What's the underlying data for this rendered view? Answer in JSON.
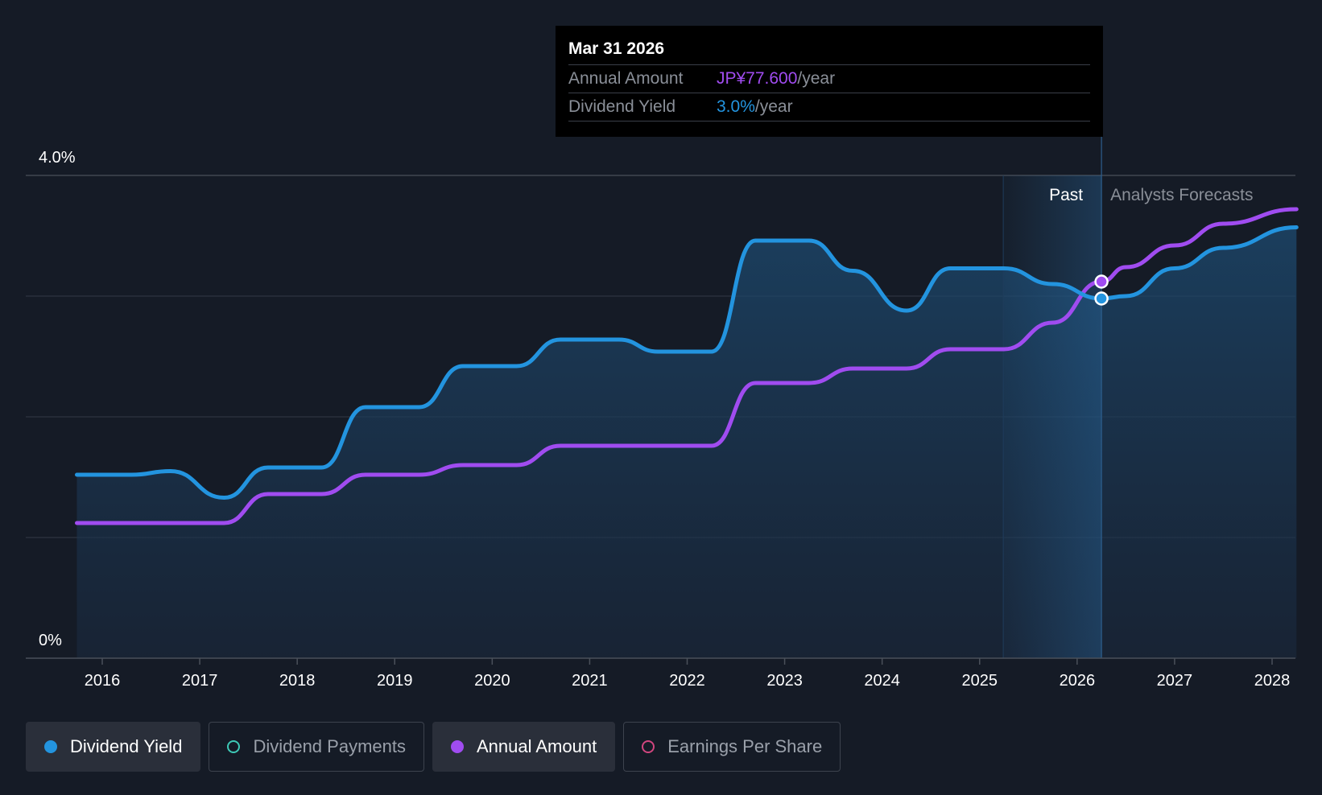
{
  "chart_data": {
    "type": "line",
    "title": "",
    "xlabel": "",
    "ylabel": "",
    "x_ticks": [
      "2016",
      "2017",
      "2018",
      "2019",
      "2020",
      "2021",
      "2022",
      "2023",
      "2024",
      "2025",
      "2026",
      "2027",
      "2028"
    ],
    "x_range": [
      2015.74,
      2028.25
    ],
    "y_range": [
      0,
      4.0
    ],
    "y_tick_labels": [
      "0%",
      "4.0%"
    ],
    "grid": true,
    "region_labels": {
      "past": "Past",
      "forecast": "Analysts Forecasts"
    },
    "past_end": 2026.25,
    "series": [
      {
        "name": "Dividend Yield",
        "color": "#2394df",
        "unit": "%",
        "points": [
          [
            2015.74,
            1.52
          ],
          [
            2016.05,
            1.52
          ],
          [
            2016.3,
            1.52
          ],
          [
            2016.7,
            1.55
          ],
          [
            2017.25,
            1.33
          ],
          [
            2017.7,
            1.58
          ],
          [
            2018.25,
            1.58
          ],
          [
            2018.7,
            2.08
          ],
          [
            2019.25,
            2.08
          ],
          [
            2019.7,
            2.42
          ],
          [
            2020.25,
            2.42
          ],
          [
            2020.7,
            2.64
          ],
          [
            2021.3,
            2.64
          ],
          [
            2021.7,
            2.54
          ],
          [
            2022.25,
            2.54
          ],
          [
            2022.7,
            3.46
          ],
          [
            2023.25,
            3.46
          ],
          [
            2023.7,
            3.21
          ],
          [
            2024.25,
            2.88
          ],
          [
            2024.7,
            3.23
          ],
          [
            2025.25,
            3.23
          ],
          [
            2025.75,
            3.1
          ],
          [
            2026.25,
            2.98
          ],
          [
            2026.5,
            3.0
          ],
          [
            2027.0,
            3.23
          ],
          [
            2027.5,
            3.4
          ],
          [
            2028.25,
            3.57
          ]
        ]
      },
      {
        "name": "Annual Amount",
        "color": "#a04cf0",
        "unit": "JP¥",
        "points": [
          [
            2015.74,
            1.12
          ],
          [
            2016.5,
            1.12
          ],
          [
            2017.25,
            1.12
          ],
          [
            2017.7,
            1.36
          ],
          [
            2018.25,
            1.36
          ],
          [
            2018.7,
            1.52
          ],
          [
            2019.25,
            1.52
          ],
          [
            2019.7,
            1.6
          ],
          [
            2020.25,
            1.6
          ],
          [
            2020.7,
            1.76
          ],
          [
            2021.5,
            1.76
          ],
          [
            2022.25,
            1.76
          ],
          [
            2022.7,
            2.28
          ],
          [
            2023.25,
            2.28
          ],
          [
            2023.7,
            2.4
          ],
          [
            2024.25,
            2.4
          ],
          [
            2024.7,
            2.56
          ],
          [
            2025.25,
            2.56
          ],
          [
            2025.75,
            2.78
          ],
          [
            2026.25,
            3.12
          ],
          [
            2026.5,
            3.24
          ],
          [
            2027.0,
            3.42
          ],
          [
            2027.5,
            3.6
          ],
          [
            2028.25,
            3.72
          ]
        ]
      }
    ],
    "highlight": {
      "x": 2026.25,
      "values": {
        "Dividend Yield": 2.98,
        "Annual Amount": 3.12
      }
    }
  },
  "tooltip": {
    "date": "Mar 31 2026",
    "rows": [
      {
        "label": "Annual Amount",
        "value": "JP¥77.600",
        "unit": "/year",
        "color": "#a04cf0"
      },
      {
        "label": "Dividend Yield",
        "value": "3.0%",
        "unit": "/year",
        "color": "#2394df"
      }
    ]
  },
  "legend": [
    {
      "label": "Dividend Yield",
      "color": "#2394df",
      "active": true,
      "filled": true
    },
    {
      "label": "Dividend Payments",
      "color": "#3ec9b6",
      "active": false,
      "filled": false
    },
    {
      "label": "Annual Amount",
      "color": "#a04cf0",
      "active": true,
      "filled": true
    },
    {
      "label": "Earnings Per Share",
      "color": "#d1467f",
      "active": false,
      "filled": false
    }
  ]
}
